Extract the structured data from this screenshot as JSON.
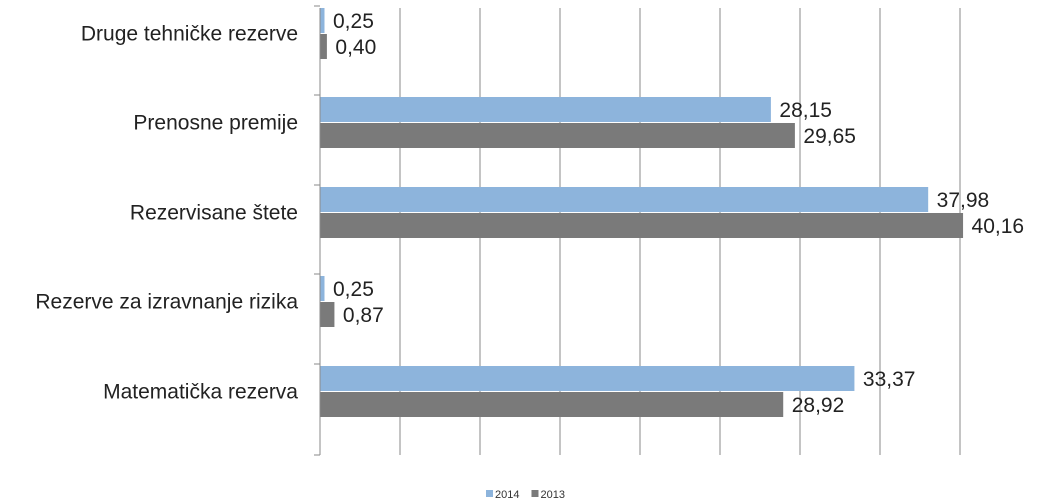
{
  "chart_data": {
    "type": "bar",
    "orientation": "horizontal",
    "categories": [
      "Druge tehničke rezerve",
      "Prenosne premije",
      "Rezervisane štete",
      "Rezerve za izravnanje rizika",
      "Matematička rezerva"
    ],
    "series": [
      {
        "name": "2014",
        "color": "#8db4dc",
        "values": [
          0.25,
          28.15,
          37.98,
          0.25,
          33.37
        ],
        "labels": [
          "0,25",
          "28,15",
          "37,98",
          "0,25",
          "33,37"
        ]
      },
      {
        "name": "2013",
        "color": "#7a7a7a",
        "values": [
          0.4,
          29.65,
          40.16,
          0.87,
          28.92
        ],
        "labels": [
          "0,40",
          "29,65",
          "40,16",
          "0,87",
          "28,92"
        ]
      }
    ],
    "xlim": [
      0,
      45
    ],
    "x_gridline_step": 5,
    "grid": true,
    "legend_position": "bottom"
  }
}
